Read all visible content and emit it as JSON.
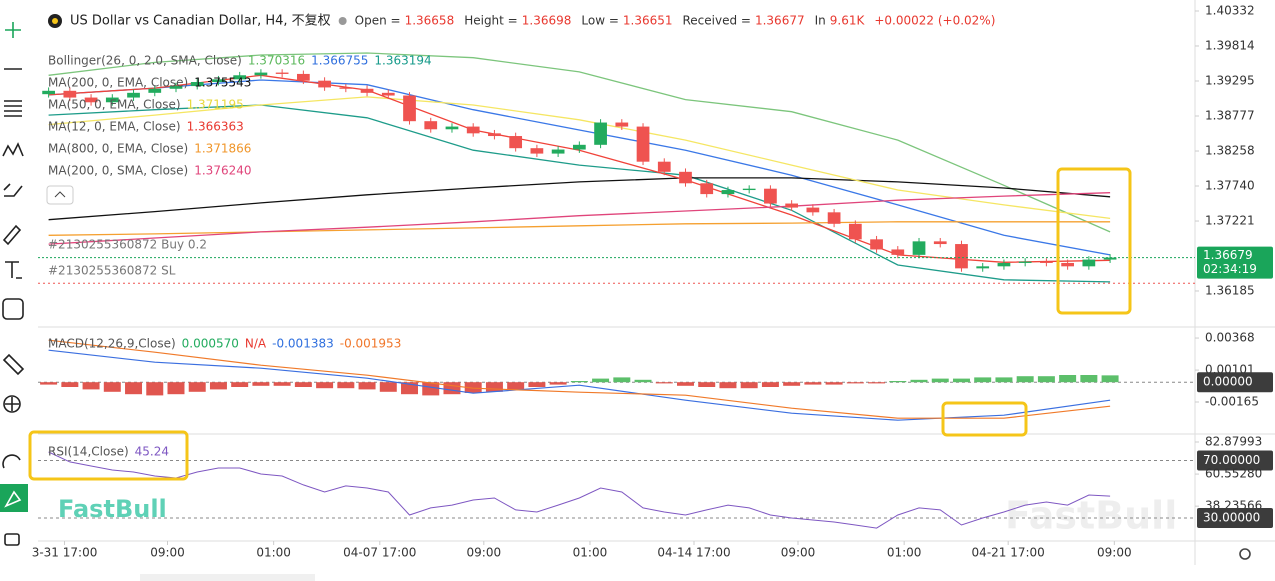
{
  "header": {
    "title": "US Dollar vs Canadian Dollar, H4, 不复权",
    "stats": [
      {
        "label": "Open =",
        "value": 1.36658
      },
      {
        "label": "Height =",
        "value": 1.36698
      },
      {
        "label": "Low =",
        "value": 1.36651
      },
      {
        "label": "Received =",
        "value": 1.36677
      },
      {
        "label": "In",
        "value": "9.61K"
      },
      {
        "value": "+0.00022 (+0.02%)"
      }
    ]
  },
  "watermarks": [
    "FastBull",
    "FastBull"
  ],
  "chart_data": [
    {
      "type": "candlestick",
      "open": [
        1.391,
        1.3915,
        1.3905,
        1.3898,
        1.3905,
        1.3912,
        1.3918,
        1.3922,
        1.3928,
        1.3932,
        1.3938,
        1.3942,
        1.394,
        1.393,
        1.392,
        1.3918,
        1.3912,
        1.3908,
        1.387,
        1.3858,
        1.3862,
        1.3852,
        1.3848,
        1.383,
        1.3822,
        1.3828,
        1.3835,
        1.3868,
        1.3862,
        1.381,
        1.3795,
        1.3778,
        1.3762,
        1.3768,
        1.377,
        1.3748,
        1.3742,
        1.3735,
        1.3718,
        1.3695,
        1.368,
        1.3672,
        1.3692,
        1.3688,
        1.3652,
        1.3655,
        1.366,
        1.3662,
        1.366,
        1.3655,
        1.3665
      ],
      "high": [
        1.392,
        1.392,
        1.391,
        1.391,
        1.3917,
        1.3923,
        1.3927,
        1.3933,
        1.3937,
        1.3943,
        1.3947,
        1.3947,
        1.3945,
        1.3935,
        1.3925,
        1.3923,
        1.3917,
        1.3913,
        1.3875,
        1.3867,
        1.3867,
        1.3857,
        1.3853,
        1.3835,
        1.3833,
        1.384,
        1.3873,
        1.3873,
        1.3867,
        1.3815,
        1.38,
        1.3783,
        1.3773,
        1.3775,
        1.3775,
        1.3753,
        1.3747,
        1.374,
        1.3723,
        1.37,
        1.3685,
        1.3697,
        1.3697,
        1.3693,
        1.366,
        1.3665,
        1.3667,
        1.3667,
        1.3665,
        1.367,
        1.3673
      ],
      "low": [
        1.3905,
        1.39,
        1.3893,
        1.3893,
        1.39,
        1.3907,
        1.3913,
        1.3917,
        1.3923,
        1.3927,
        1.3933,
        1.3935,
        1.3925,
        1.3915,
        1.3913,
        1.3907,
        1.3903,
        1.3865,
        1.3853,
        1.3853,
        1.3847,
        1.3843,
        1.3825,
        1.3817,
        1.3817,
        1.3823,
        1.383,
        1.3857,
        1.3805,
        1.379,
        1.3773,
        1.3757,
        1.3757,
        1.3763,
        1.3743,
        1.3737,
        1.373,
        1.3713,
        1.369,
        1.3675,
        1.3667,
        1.3667,
        1.3683,
        1.3647,
        1.3647,
        1.365,
        1.3655,
        1.3655,
        1.365,
        1.365,
        1.366
      ],
      "close": [
        1.3915,
        1.3905,
        1.3898,
        1.3905,
        1.3912,
        1.3918,
        1.3922,
        1.3928,
        1.3932,
        1.3938,
        1.3942,
        1.394,
        1.393,
        1.392,
        1.3918,
        1.3912,
        1.3908,
        1.387,
        1.3858,
        1.3862,
        1.3852,
        1.3848,
        1.383,
        1.3822,
        1.3828,
        1.3835,
        1.3868,
        1.3862,
        1.381,
        1.3795,
        1.3778,
        1.3762,
        1.3768,
        1.377,
        1.3748,
        1.3742,
        1.3735,
        1.3718,
        1.3695,
        1.368,
        1.3672,
        1.3692,
        1.3688,
        1.3652,
        1.3655,
        1.366,
        1.3662,
        1.366,
        1.3655,
        1.3665,
        1.3668
      ],
      "up_color": "#22ab5e",
      "down_color": "#ef5350",
      "xlim": [
        -0.5,
        54
      ],
      "ylim": [
        1.35681,
        1.40495
      ],
      "yticks": [
        1.40332,
        1.39814,
        1.39295,
        1.38777,
        1.38258,
        {
          "value": 1.3774,
          "label": "1.37740"
        },
        1.37221,
        1.36185
      ],
      "legends": [
        {
          "name": "Bollinger(26, 0, 2.0, SMA, Close)",
          "readouts": [
            1.370316,
            1.366755,
            1.363194
          ],
          "colors": [
            "#5cb85c",
            "#2f6fde",
            "#159a8a"
          ]
        },
        {
          "name": "MA(200, 0, EMA, Close)",
          "readouts": [
            1.375543
          ],
          "colors": [
            "#111111"
          ]
        },
        {
          "name": "MA(50, 0, EMA, Close)",
          "readouts": [
            1.371195
          ],
          "colors": [
            "#e8d83a"
          ]
        },
        {
          "name": "MA(12, 0, EMA, Close)",
          "readouts": [
            1.366363
          ],
          "colors": [
            "#e8382f"
          ]
        },
        {
          "name": "MA(800, 0, EMA, Close)",
          "readouts": [
            1.371866
          ],
          "colors": [
            "#f0962a"
          ]
        },
        {
          "name": "MA(200, 0, SMA, Close)",
          "readouts": [
            {
              "value": 1.37624,
              "label": "1.376240"
            }
          ],
          "colors": [
            "#e0457b"
          ]
        }
      ],
      "line_x": [
        0,
        5,
        10,
        15,
        20,
        25,
        30,
        35,
        40,
        45,
        50
      ],
      "lines": [
        {
          "color": "#7cc57c",
          "values": [
            1.3938,
            1.3957,
            1.3968,
            1.3971,
            1.3964,
            1.3943,
            1.3902,
            1.3884,
            1.3842,
            1.3775,
            1.3706
          ]
        },
        {
          "color": "#3b78e7",
          "values": [
            1.3909,
            1.3919,
            1.3931,
            1.3924,
            1.3887,
            1.3857,
            1.3827,
            1.379,
            1.3746,
            1.3701,
            1.3672
          ]
        },
        {
          "color": "#1e9c8a",
          "values": [
            1.3879,
            1.3887,
            1.3894,
            1.3875,
            1.3827,
            1.3805,
            1.379,
            1.3738,
            1.3657,
            1.3635,
            1.3632
          ]
        },
        {
          "color": "#111111",
          "values": [
            1.3724,
            1.3736,
            1.3749,
            1.3761,
            1.3771,
            1.378,
            1.3786,
            1.3786,
            1.378,
            1.3771,
            1.3758
          ]
        },
        {
          "color": "#f5e663",
          "values": [
            1.3865,
            1.3879,
            1.3894,
            1.3906,
            1.3894,
            1.3872,
            1.3842,
            1.3805,
            1.3768,
            1.3746,
            1.3726
          ]
        },
        {
          "color": "#f0433a",
          "values": [
            1.3909,
            1.3919,
            1.3938,
            1.3916,
            1.3857,
            1.3827,
            1.3783,
            1.3731,
            1.3672,
            1.3661,
            1.3664
          ]
        },
        {
          "color": "#f5a030",
          "values": [
            1.3701,
            1.3703,
            1.3706,
            1.3709,
            1.3712,
            1.3715,
            1.3718,
            1.3719,
            1.3721,
            1.3721,
            1.3721
          ]
        },
        {
          "color": "#e0457b",
          "values": [
            1.3688,
            1.3697,
            1.3706,
            1.3713,
            1.3721,
            1.373,
            1.3737,
            1.3744,
            1.3753,
            1.3759,
            1.3764
          ]
        }
      ],
      "last_price": 1.36679,
      "countdown": "02:34:19",
      "last_price_color": "#1aa55a",
      "orders": [
        {
          "label": "#2130255360872 Buy 0.2"
        },
        {
          "label": "#2130255360872 SL",
          "value": 1.363,
          "color": "#ef5350"
        }
      ]
    },
    {
      "type": "bar",
      "values": [
        -0.0002,
        -0.0004,
        -0.0006,
        -0.0008,
        -0.001,
        -0.0011,
        -0.001,
        -0.0008,
        -0.0006,
        -0.0004,
        -0.0003,
        -0.0003,
        -0.0004,
        -0.0005,
        -0.0005,
        -0.0006,
        -0.0008,
        -0.001,
        -0.0011,
        -0.001,
        -0.0009,
        -0.0008,
        -0.0006,
        -0.0004,
        -0.0002,
        0.0001,
        0.0003,
        0.0004,
        0.0002,
        -0.0001,
        -0.0003,
        -0.0004,
        -0.0005,
        -0.0005,
        -0.0004,
        -0.0003,
        -0.0002,
        -0.0002,
        -0.0001,
        -0.0001,
        0.0001,
        0.0002,
        0.0003,
        0.0003,
        0.0004,
        0.0004,
        0.0005,
        0.0005,
        0.0006,
        0.0006,
        0.00057
      ],
      "up_color": "#5cbf6a",
      "down_color": "#e0564f",
      "xlim": [
        -0.5,
        54
      ],
      "ylim": [
        -0.00415,
        0.00435
      ],
      "yticks": [
        0.00368,
        0.00101,
        {
          "value": 0,
          "label": "0.00000",
          "boxed": true
        },
        -0.00165
      ],
      "legends": [
        {
          "name": "MACD(12,26,9,Close)",
          "readouts": [
            {
              "value": 0.00057,
              "label": "0.000570"
            },
            "N/A",
            -0.001383,
            -0.001953
          ],
          "colors": [
            "#22ab5e",
            "#e8382f",
            "#2f6fde",
            "#f0762a"
          ]
        }
      ],
      "line_x": [
        0,
        5,
        10,
        15,
        20,
        25,
        30,
        35,
        40,
        45,
        50
      ],
      "lines": [
        {
          "color": "#3b6fe0",
          "values": [
            0.00267,
            0.00167,
            0.00117,
            0.00033,
            -0.00092,
            -0.00025,
            -0.0015,
            -0.00258,
            -0.00317,
            -0.00275,
            -0.0015
          ]
        },
        {
          "color": "#f07a2a",
          "values": [
            0.0035,
            0.0025,
            0.00142,
            0.00058,
            -0.0005,
            -0.00083,
            -0.00108,
            -0.00217,
            -0.003,
            -0.003,
            -0.002
          ]
        }
      ]
    },
    {
      "type": "line",
      "values": [
        75.9,
        69.0,
        66.2,
        63.4,
        62.0,
        59.2,
        57.8,
        62.0,
        64.8,
        64.8,
        60.6,
        59.2,
        53.0,
        48.1,
        52.3,
        50.9,
        48.1,
        32.1,
        37.0,
        39.0,
        42.5,
        43.9,
        35.6,
        34.2,
        39.0,
        43.9,
        50.9,
        48.1,
        37.0,
        34.2,
        32.1,
        35.6,
        39.0,
        37.0,
        32.1,
        30.0,
        28.6,
        27.2,
        25.1,
        23.0,
        32.1,
        37.0,
        35.6,
        25.1,
        30.0,
        34.2,
        39.0,
        41.1,
        39.0,
        46.0,
        45.24
      ],
      "color": "#7e57c2",
      "xlim": [
        -0.5,
        54
      ],
      "ylim": [
        14.69,
        87.05
      ],
      "yticks": [
        82.87993,
        {
          "value": 70,
          "label": "70.00000",
          "boxed": true
        },
        {
          "value": 60.5528,
          "label": "60.55280"
        },
        38.23566,
        {
          "value": 30,
          "label": "30.00000",
          "boxed": true
        }
      ],
      "legends": [
        {
          "name": "RSI(14,Close)",
          "readouts": [
            45.24
          ],
          "colors": [
            "#7e57c2"
          ]
        }
      ],
      "xticks": [
        {
          "value": 0.75,
          "label": "3-31 17:00"
        },
        {
          "value": 5.6,
          "label": "09:00"
        },
        {
          "value": 10.6,
          "label": "01:00"
        },
        {
          "value": 15.6,
          "label": "04-07 17:00"
        },
        {
          "value": 20.5,
          "label": "09:00"
        },
        {
          "value": 25.5,
          "label": "01:00"
        },
        {
          "value": 30.4,
          "label": "04-14 17:00"
        },
        {
          "value": 35.3,
          "label": "09:00"
        },
        {
          "value": 40.3,
          "label": "01:00"
        },
        {
          "value": 45.2,
          "label": "04-21 17:00"
        },
        {
          "value": 50.2,
          "label": "09:00"
        }
      ]
    }
  ]
}
